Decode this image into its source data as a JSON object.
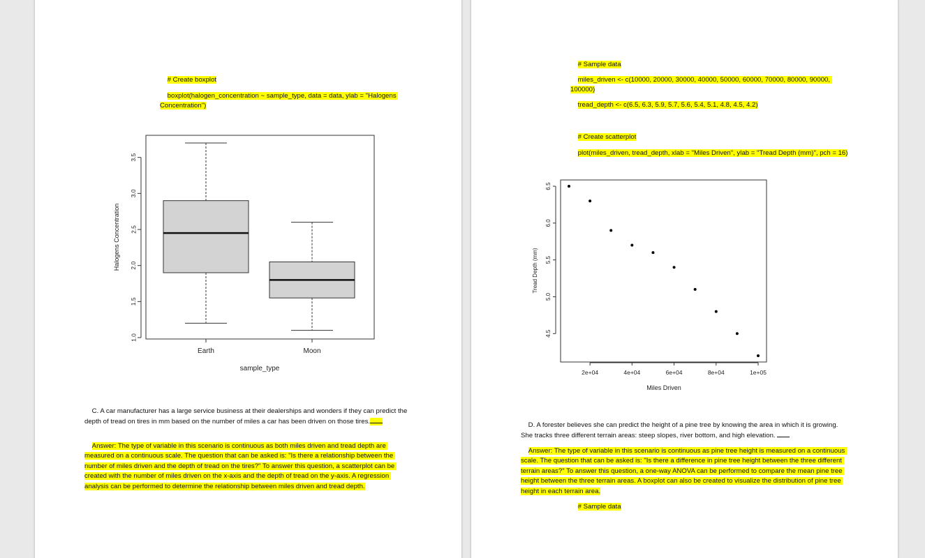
{
  "page1": {
    "code_comment": "# Create boxplot",
    "code_line": "boxplot(halogen_concentration ~ sample_type, data = data, ylab = \"Halogens Concentration\")",
    "question_c": "C. A car manufacturer has a large service business at their dealerships and wonders if they can predict the depth of tread on tires in mm based on the number of miles a car has been driven on those tires.",
    "answer_c": "Answer: The type of variable in this scenario is continuous as both miles driven and tread depth are measured on a continuous scale. The question that can be asked is: \"Is there a relationship between the number of miles driven and the depth of tread on the tires?\" To answer this question, a scatterplot can be created with the number of miles driven on the x-axis and the depth of tread on the y-axis. A regression analysis can be performed to determine the relationship between miles driven and tread depth."
  },
  "page2": {
    "comment_sample": "# Sample data",
    "miles_line": "miles_driven <- c(10000, 20000, 30000, 40000, 50000, 60000, 70000, 80000, 90000, 100000)",
    "tread_line": "tread_depth <- c(6.5, 6.3, 5.9, 5.7, 5.6, 5.4, 5.1, 4.8, 4.5, 4.2)",
    "comment_scatter": "# Create scatterplot",
    "plot_line": "plot(miles_driven, tread_depth, xlab = \"Miles Driven\", ylab = \"Tread Depth (mm)\", pch = 16)",
    "question_d": "D. A forester believes she can predict the height of a pine tree by knowing the area in which it is growing. She tracks three different terrain areas: steep slopes, river bottom, and high elevation.",
    "answer_d": "Answer: The type of variable in this scenario is continuous as pine tree height is measured on a continuous scale. The question that can be asked is: \"Is there a difference in pine tree height between the three different terrain areas?\" To answer this question, a one-way ANOVA can be performed to compare the mean pine tree height between the three terrain areas. A boxplot can also be created to visualize the distribution of pine tree height in each terrain area.",
    "comment_sample_2": "# Sample data"
  },
  "chart_data": [
    {
      "type": "boxplot",
      "title": "",
      "xlabel": "sample_type",
      "ylabel": "Halogens Concentration",
      "ylim": [
        1.0,
        3.7
      ],
      "yticks": [
        "1.0",
        "1.5",
        "2.0",
        "2.5",
        "3.0",
        "3.5"
      ],
      "categories": [
        "Earth",
        "Moon"
      ],
      "boxes": [
        {
          "category": "Earth",
          "min": 1.2,
          "q1": 1.9,
          "median": 2.45,
          "q3": 2.9,
          "max": 3.7
        },
        {
          "category": "Moon",
          "min": 1.1,
          "q1": 1.55,
          "median": 1.8,
          "q3": 2.05,
          "max": 2.6
        }
      ],
      "box_fill": "#d3d3d3",
      "grid": false
    },
    {
      "type": "scatter",
      "title": "",
      "xlabel": "Miles Driven",
      "ylabel": "Tread Depth (mm)",
      "xticks": [
        "2e+04",
        "4e+04",
        "6e+04",
        "8e+04",
        "1e+05"
      ],
      "yticks": [
        "4.5",
        "5.0",
        "5.5",
        "6.0",
        "6.5"
      ],
      "xlim": [
        10000,
        100000
      ],
      "ylim": [
        4.2,
        6.5
      ],
      "x": [
        10000,
        20000,
        30000,
        40000,
        50000,
        60000,
        70000,
        80000,
        90000,
        100000
      ],
      "y": [
        6.5,
        6.3,
        5.9,
        5.7,
        5.6,
        5.4,
        5.1,
        4.8,
        4.5,
        4.2
      ],
      "point_color": "#000000",
      "grid": false
    }
  ]
}
